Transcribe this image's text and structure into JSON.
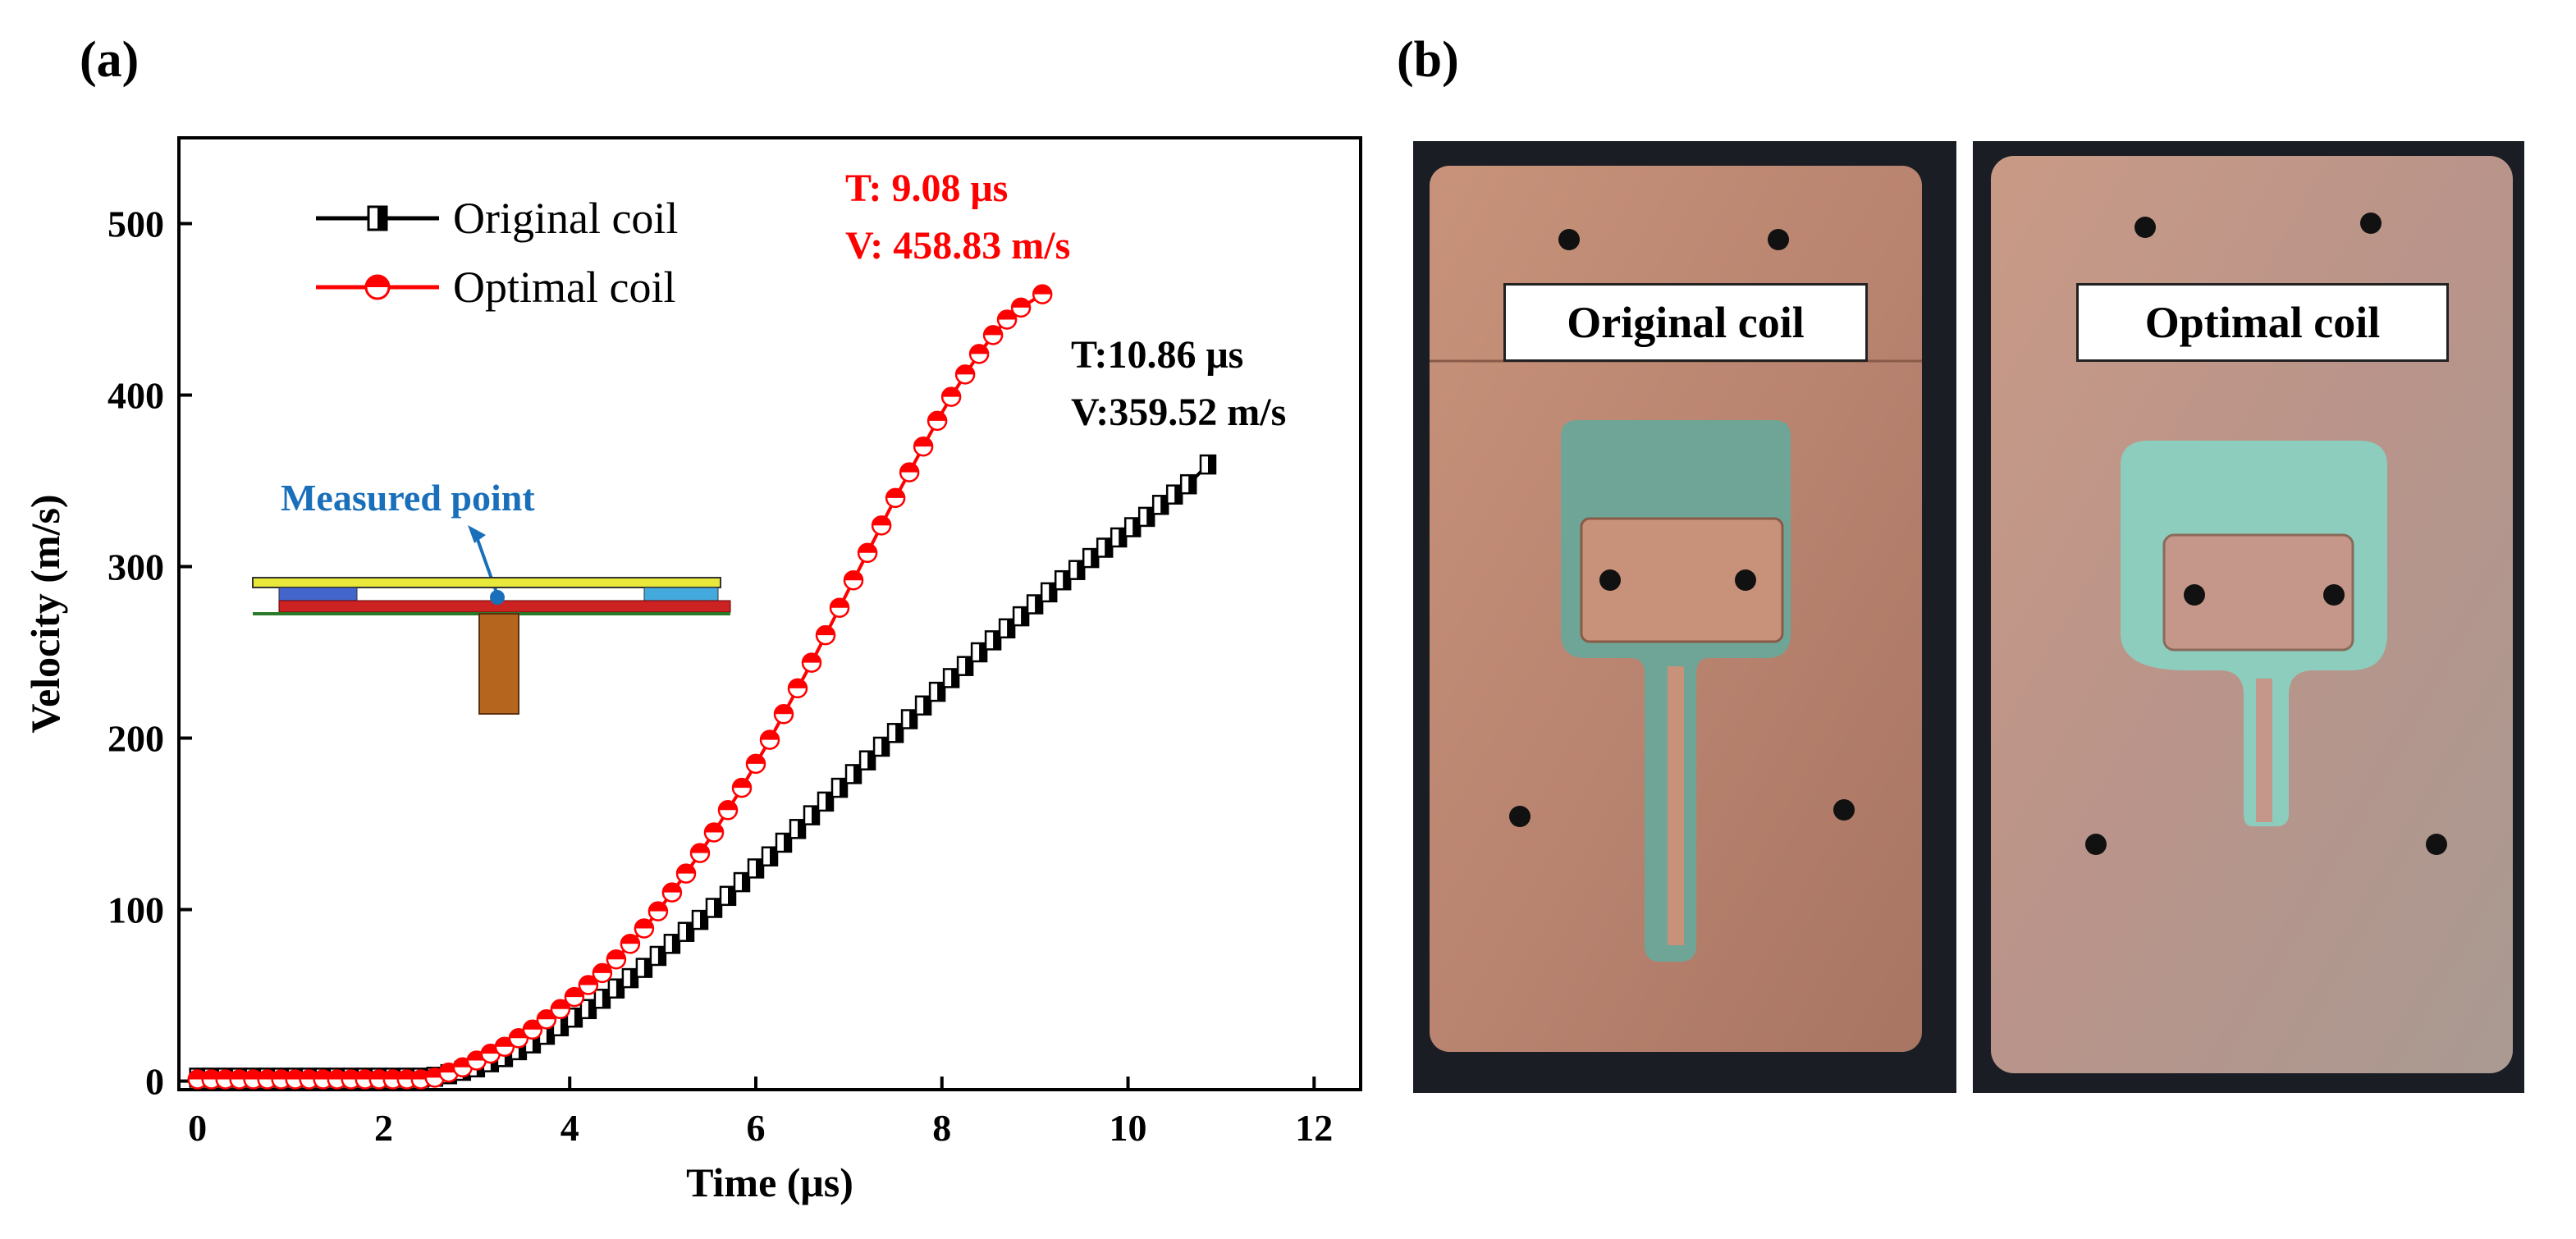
{
  "panel_a_label": "(a)",
  "panel_b_label": "(b)",
  "chart_data": {
    "type": "line",
    "xlabel": "Time (μs)",
    "ylabel": "Velocity (m/s)",
    "xlim": [
      -0.2,
      12.5
    ],
    "ylim": [
      -5,
      550
    ],
    "xticks": [
      0,
      2,
      4,
      6,
      8,
      10,
      12
    ],
    "yticks": [
      0,
      100,
      200,
      300,
      400,
      500
    ],
    "legend_position": "top-left",
    "grid": false,
    "series": [
      {
        "name": "Original coil",
        "color": "#000000",
        "marker": "half-filled-square",
        "x": [
          0,
          0.15,
          0.3,
          0.45,
          0.6,
          0.75,
          0.9,
          1.05,
          1.2,
          1.35,
          1.5,
          1.65,
          1.8,
          1.95,
          2.1,
          2.25,
          2.4,
          2.55,
          2.7,
          2.85,
          3.0,
          3.15,
          3.3,
          3.45,
          3.6,
          3.75,
          3.9,
          4.05,
          4.2,
          4.35,
          4.5,
          4.65,
          4.8,
          4.95,
          5.1,
          5.25,
          5.4,
          5.55,
          5.7,
          5.85,
          6.0,
          6.15,
          6.3,
          6.45,
          6.6,
          6.75,
          6.9,
          7.05,
          7.2,
          7.35,
          7.5,
          7.65,
          7.8,
          7.95,
          8.1,
          8.25,
          8.4,
          8.55,
          8.7,
          8.85,
          9.0,
          9.15,
          9.3,
          9.45,
          9.6,
          9.75,
          9.9,
          10.05,
          10.2,
          10.35,
          10.5,
          10.65,
          10.86
        ],
        "y": [
          2,
          2,
          2,
          2,
          2,
          2,
          2,
          2,
          2,
          2,
          2,
          2,
          2,
          2,
          2,
          2,
          2,
          2.5,
          4,
          6,
          8,
          11,
          14,
          18,
          22,
          27,
          32,
          37,
          42,
          48,
          54,
          60,
          66,
          73,
          80,
          87,
          94,
          101,
          108,
          116,
          124,
          131,
          139,
          147,
          155,
          163,
          171,
          179,
          187,
          195,
          203,
          211,
          219,
          227,
          235,
          242,
          250,
          257,
          264,
          271,
          278,
          285,
          292,
          298,
          305,
          311,
          317,
          323,
          329,
          336,
          342,
          348,
          359.52
        ]
      },
      {
        "name": "Optimal coil",
        "color": "#ff0000",
        "marker": "half-filled-circle",
        "x": [
          0,
          0.15,
          0.3,
          0.45,
          0.6,
          0.75,
          0.9,
          1.05,
          1.2,
          1.35,
          1.5,
          1.65,
          1.8,
          1.95,
          2.1,
          2.25,
          2.4,
          2.55,
          2.7,
          2.85,
          3.0,
          3.15,
          3.3,
          3.45,
          3.6,
          3.75,
          3.9,
          4.05,
          4.2,
          4.35,
          4.5,
          4.65,
          4.8,
          4.95,
          5.1,
          5.25,
          5.4,
          5.55,
          5.7,
          5.85,
          6.0,
          6.15,
          6.3,
          6.45,
          6.6,
          6.75,
          6.9,
          7.05,
          7.2,
          7.35,
          7.5,
          7.65,
          7.8,
          7.95,
          8.1,
          8.25,
          8.4,
          8.55,
          8.7,
          8.85,
          9.08
        ],
        "y": [
          1,
          1,
          1,
          1,
          1,
          1,
          1,
          1,
          1,
          1,
          1,
          1,
          1,
          1,
          1,
          1,
          1,
          2,
          5,
          8,
          12,
          16,
          20,
          25,
          30,
          36,
          42,
          49,
          56,
          63,
          71,
          80,
          89,
          99,
          110,
          121,
          133,
          145,
          158,
          171,
          185,
          199,
          214,
          229,
          244,
          260,
          276,
          292,
          308,
          324,
          340,
          355,
          370,
          385,
          399,
          412,
          424,
          435,
          444,
          451,
          458.83
        ]
      }
    ],
    "annotations": [
      {
        "line1": "T: 9.08 μs",
        "line2": "V: 458.83 m/s",
        "color": "#ff0000"
      },
      {
        "line1": "T:10.86 μs",
        "line2": "V:359.52 m/s",
        "color": "#000000"
      },
      {
        "text": "Measured point",
        "color": "#1a6fba"
      }
    ]
  },
  "photos": {
    "left_label": "Original coil",
    "right_label": "Optimal coil"
  }
}
